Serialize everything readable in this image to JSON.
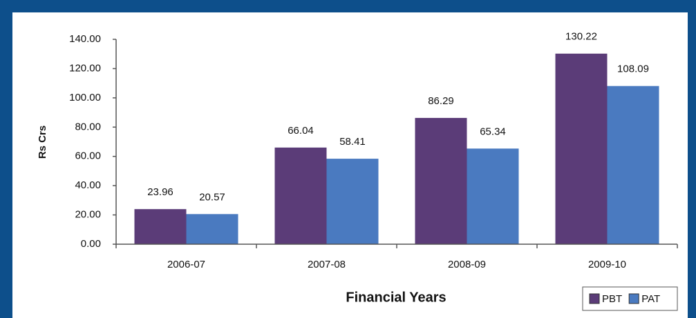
{
  "chart_data": {
    "type": "bar",
    "x_label": "Financial Years",
    "y_label": "Rs Crs",
    "categories": [
      "2006-07",
      "2007-08",
      "2008-09",
      "2009-10"
    ],
    "series": [
      {
        "name": "PBT",
        "color": "#5b3c78",
        "values": [
          23.96,
          66.04,
          86.29,
          130.22
        ]
      },
      {
        "name": "PAT",
        "color": "#4a7ac0",
        "values": [
          20.57,
          58.41,
          65.34,
          108.09
        ]
      }
    ],
    "ylim": [
      0,
      140
    ],
    "yticks": [
      {
        "value": 0,
        "label": "0.00"
      },
      {
        "value": 20,
        "label": "20.00"
      },
      {
        "value": 40,
        "label": "40.00"
      },
      {
        "value": 60,
        "label": "60.00"
      },
      {
        "value": 80,
        "label": "80.00"
      },
      {
        "value": 100,
        "label": "100.00"
      },
      {
        "value": 120,
        "label": "120.00"
      },
      {
        "value": 140,
        "label": "140.00"
      }
    ],
    "legend": "bottom-right",
    "grid": false
  }
}
